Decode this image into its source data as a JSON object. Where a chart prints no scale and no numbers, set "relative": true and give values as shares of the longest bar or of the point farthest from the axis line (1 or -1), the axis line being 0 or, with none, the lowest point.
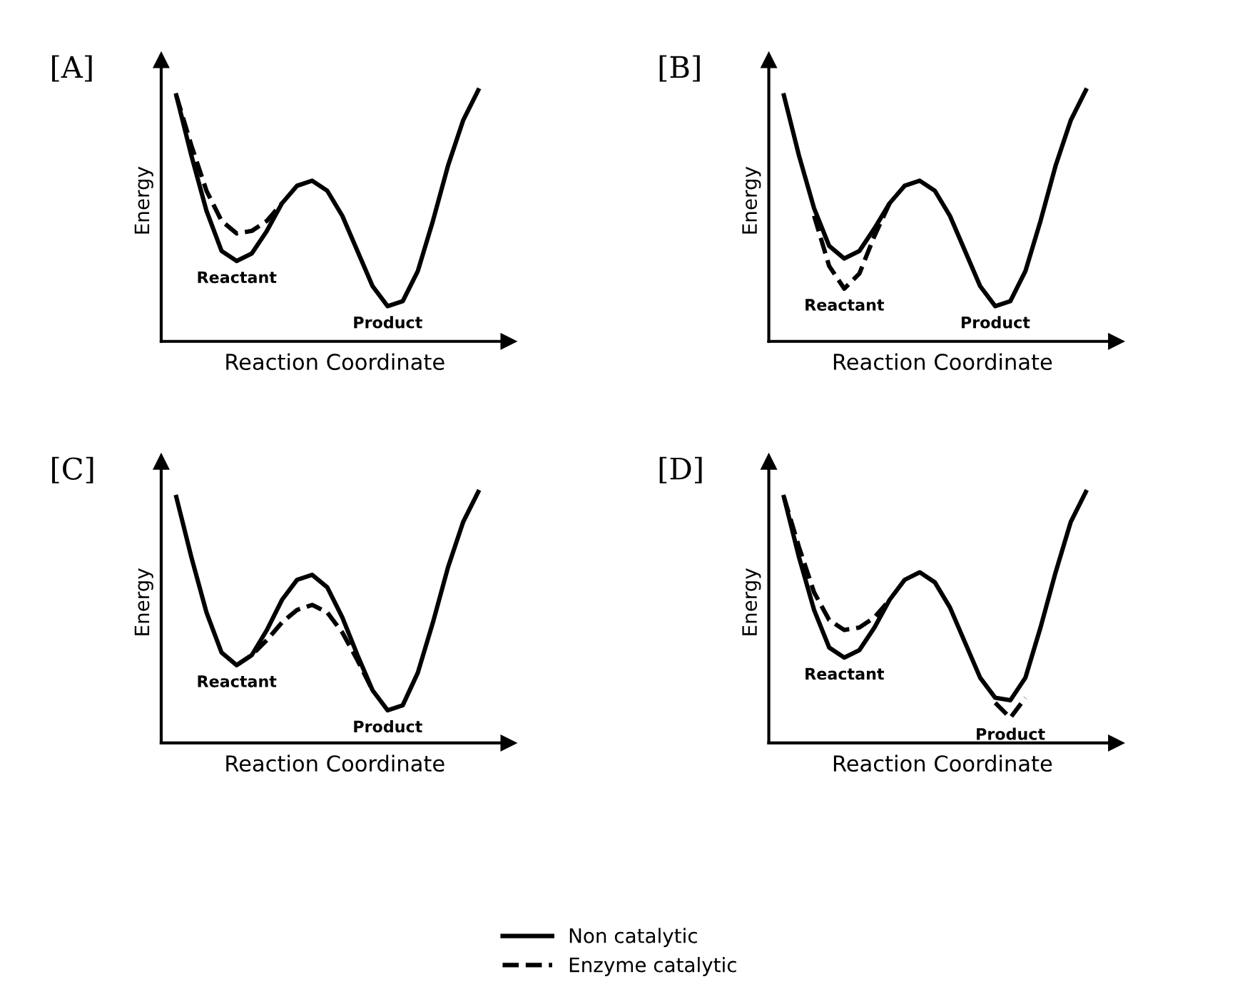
{
  "chart_data": [
    {
      "type": "line",
      "title": "[A]",
      "xlabel": "Reaction Coordinate",
      "ylabel": "Energy",
      "relative": true,
      "tick_labels": false,
      "legend": false,
      "categories": [
        null,
        null,
        null,
        null,
        null,
        null,
        null,
        null,
        null,
        null,
        null,
        null,
        null,
        null,
        null,
        null,
        null,
        null,
        null,
        null,
        null
      ],
      "annotations": [
        "Reactant",
        "Product"
      ],
      "series": [
        {
          "color": "#000000",
          "line_style": "solid",
          "values": [
            0.98,
            0.74,
            0.52,
            0.36,
            0.32,
            0.35,
            0.44,
            0.55,
            0.62,
            0.64,
            0.6,
            0.5,
            0.36,
            0.22,
            0.14,
            0.16,
            0.28,
            0.48,
            0.7,
            0.88,
            1.0
          ]
        },
        {
          "color": "#000000",
          "line_style": "dashed",
          "values": [
            0.98,
            0.78,
            0.6,
            0.48,
            0.43,
            0.44,
            0.48,
            0.55,
            null,
            null,
            null,
            null,
            null,
            null,
            null,
            null,
            null,
            null,
            null,
            null,
            null
          ]
        }
      ]
    },
    {
      "type": "line",
      "title": "[B]",
      "xlabel": "Reaction Coordinate",
      "ylabel": "Energy",
      "relative": true,
      "tick_labels": false,
      "legend": false,
      "categories": [
        null,
        null,
        null,
        null,
        null,
        null,
        null,
        null,
        null,
        null,
        null,
        null,
        null,
        null,
        null,
        null,
        null,
        null,
        null,
        null,
        null
      ],
      "annotations": [
        "Reactant",
        "Product"
      ],
      "series": [
        {
          "color": "#000000",
          "line_style": "solid",
          "values": [
            0.98,
            0.74,
            0.53,
            0.38,
            0.33,
            0.36,
            0.45,
            0.55,
            0.62,
            0.64,
            0.6,
            0.5,
            0.36,
            0.22,
            0.14,
            0.16,
            0.28,
            0.48,
            0.7,
            0.88,
            1.0
          ]
        },
        {
          "color": "#000000",
          "line_style": "dashed",
          "values": [
            null,
            null,
            0.5,
            0.3,
            0.21,
            0.27,
            0.42,
            0.55,
            null,
            null,
            null,
            null,
            null,
            null,
            null,
            null,
            null,
            null,
            null,
            null,
            null
          ]
        }
      ]
    },
    {
      "type": "line",
      "title": "[C]",
      "xlabel": "Reaction Coordinate",
      "ylabel": "Energy",
      "relative": true,
      "tick_labels": false,
      "legend": false,
      "categories": [
        null,
        null,
        null,
        null,
        null,
        null,
        null,
        null,
        null,
        null,
        null,
        null,
        null,
        null,
        null,
        null,
        null,
        null,
        null,
        null,
        null
      ],
      "annotations": [
        "Reactant",
        "Product"
      ],
      "series": [
        {
          "color": "#000000",
          "line_style": "solid",
          "values": [
            0.98,
            0.74,
            0.52,
            0.36,
            0.31,
            0.35,
            0.45,
            0.57,
            0.65,
            0.67,
            0.62,
            0.5,
            0.35,
            0.21,
            0.13,
            0.15,
            0.28,
            0.48,
            0.7,
            0.88,
            1.0
          ]
        },
        {
          "color": "#000000",
          "line_style": "dashed",
          "values": [
            null,
            null,
            null,
            null,
            0.31,
            0.35,
            0.41,
            0.48,
            0.53,
            0.55,
            0.52,
            0.44,
            0.33,
            0.21,
            null,
            null,
            null,
            null,
            null,
            null,
            null
          ]
        }
      ]
    },
    {
      "type": "line",
      "title": "[D]",
      "xlabel": "Reaction Coordinate",
      "ylabel": "Energy",
      "relative": true,
      "tick_labels": false,
      "legend": "bottom",
      "categories": [
        null,
        null,
        null,
        null,
        null,
        null,
        null,
        null,
        null,
        null,
        null,
        null,
        null,
        null,
        null,
        null,
        null,
        null,
        null,
        null,
        null
      ],
      "annotations": [
        "Reactant",
        "Product"
      ],
      "series": [
        {
          "name": "Non catalytic",
          "color": "#000000",
          "line_style": "solid",
          "values": [
            0.98,
            0.74,
            0.53,
            0.38,
            0.34,
            0.37,
            0.46,
            0.57,
            0.65,
            0.68,
            0.64,
            0.54,
            0.4,
            0.26,
            0.18,
            0.17,
            0.26,
            0.46,
            0.68,
            0.88,
            1.0
          ]
        },
        {
          "name": "Enzyme catalytic",
          "color": "#000000",
          "line_style": "dashed",
          "values": [
            0.98,
            0.78,
            0.6,
            0.49,
            0.45,
            0.46,
            0.5,
            0.57,
            null,
            null,
            null,
            null,
            null,
            null,
            0.16,
            0.1,
            0.18,
            null,
            null,
            null,
            null
          ]
        }
      ]
    }
  ]
}
